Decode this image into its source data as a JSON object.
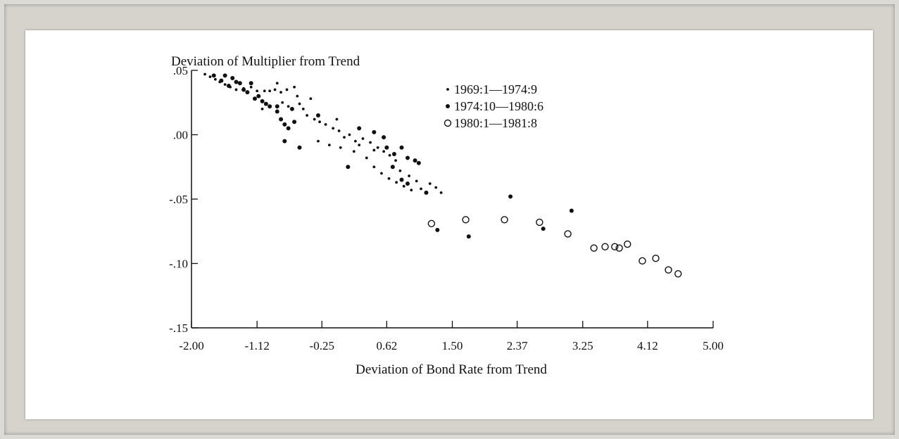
{
  "chart_data": {
    "type": "scatter",
    "ylabel": "Deviation of Multiplier from Trend",
    "xlabel": "Deviation of Bond Rate from Trend",
    "xlim": [
      -2.0,
      5.0
    ],
    "ylim": [
      -0.15,
      0.05
    ],
    "x_ticks": [
      -2.0,
      -1.12,
      -0.25,
      0.62,
      1.5,
      2.37,
      3.25,
      4.12,
      5.0
    ],
    "x_tick_labels": [
      "-2.00",
      "-1.12",
      "-0.25",
      "0.62",
      "1.50",
      "2.37",
      "3.25",
      "4.12",
      "5.00"
    ],
    "y_ticks": [
      0.05,
      0.0,
      -0.05,
      -0.1,
      -0.15
    ],
    "y_tick_labels": [
      ".05",
      ".00",
      "-.05",
      "-.10",
      "-.15"
    ],
    "grid": false,
    "legend_position": "top-right",
    "series": [
      {
        "name": "1969:1—1974:9",
        "marker": "small-dot",
        "points": [
          [
            -1.82,
            0.047
          ],
          [
            -1.75,
            0.045
          ],
          [
            -1.68,
            0.043
          ],
          [
            -1.62,
            0.041
          ],
          [
            -1.55,
            0.039
          ],
          [
            -1.48,
            0.037
          ],
          [
            -1.4,
            0.035
          ],
          [
            -1.3,
            0.036
          ],
          [
            -1.2,
            0.037
          ],
          [
            -1.12,
            0.034
          ],
          [
            -1.02,
            0.034
          ],
          [
            -0.95,
            0.034
          ],
          [
            -0.88,
            0.035
          ],
          [
            -0.8,
            0.033
          ],
          [
            -0.72,
            0.035
          ],
          [
            -0.78,
            0.025
          ],
          [
            -0.7,
            0.022
          ],
          [
            -0.58,
            0.03
          ],
          [
            -0.55,
            0.024
          ],
          [
            -0.5,
            0.02
          ],
          [
            -0.45,
            0.015
          ],
          [
            -0.35,
            0.012
          ],
          [
            -0.28,
            0.01
          ],
          [
            -0.2,
            0.008
          ],
          [
            -0.1,
            0.005
          ],
          [
            -0.02,
            0.003
          ],
          [
            0.05,
            -0.002
          ],
          [
            0.12,
            0.0
          ],
          [
            0.2,
            -0.005
          ],
          [
            0.3,
            -0.003
          ],
          [
            0.4,
            -0.006
          ],
          [
            0.5,
            -0.01
          ],
          [
            0.58,
            -0.013
          ],
          [
            0.66,
            -0.016
          ],
          [
            0.74,
            -0.02
          ],
          [
            -0.3,
            -0.005
          ],
          [
            -0.15,
            -0.008
          ],
          [
            0.0,
            -0.01
          ],
          [
            0.18,
            -0.013
          ],
          [
            0.35,
            -0.018
          ],
          [
            0.45,
            -0.025
          ],
          [
            0.55,
            -0.03
          ],
          [
            0.65,
            -0.034
          ],
          [
            0.75,
            -0.037
          ],
          [
            0.85,
            -0.04
          ],
          [
            0.95,
            -0.043
          ],
          [
            1.08,
            -0.042
          ],
          [
            1.2,
            -0.038
          ],
          [
            1.28,
            -0.041
          ],
          [
            1.35,
            -0.045
          ],
          [
            0.8,
            -0.028
          ],
          [
            0.92,
            -0.032
          ],
          [
            1.02,
            -0.036
          ],
          [
            0.45,
            -0.012
          ],
          [
            0.25,
            -0.008
          ],
          [
            -0.05,
            0.012
          ],
          [
            -0.4,
            0.028
          ],
          [
            -0.85,
            0.04
          ],
          [
            -1.05,
            0.02
          ],
          [
            -0.62,
            0.037
          ]
        ]
      },
      {
        "name": "1974:10—1980:6",
        "marker": "filled-dot",
        "points": [
          [
            -1.7,
            0.046
          ],
          [
            -1.6,
            0.042
          ],
          [
            -1.55,
            0.046
          ],
          [
            -1.5,
            0.038
          ],
          [
            -1.45,
            0.044
          ],
          [
            -1.4,
            0.041
          ],
          [
            -1.35,
            0.04
          ],
          [
            -1.3,
            0.035
          ],
          [
            -1.25,
            0.033
          ],
          [
            -1.2,
            0.04
          ],
          [
            -1.15,
            0.028
          ],
          [
            -1.1,
            0.03
          ],
          [
            -1.05,
            0.026
          ],
          [
            -1.0,
            0.024
          ],
          [
            -0.95,
            0.022
          ],
          [
            -0.85,
            0.018
          ],
          [
            -0.8,
            0.012
          ],
          [
            -0.75,
            0.008
          ],
          [
            -0.7,
            0.005
          ],
          [
            -0.75,
            -0.005
          ],
          [
            -0.62,
            0.01
          ],
          [
            -0.55,
            -0.01
          ],
          [
            -0.85,
            0.022
          ],
          [
            -0.65,
            0.02
          ],
          [
            -0.3,
            0.015
          ],
          [
            0.25,
            0.005
          ],
          [
            0.45,
            0.002
          ],
          [
            0.58,
            -0.002
          ],
          [
            0.62,
            -0.01
          ],
          [
            0.72,
            -0.015
          ],
          [
            0.82,
            -0.01
          ],
          [
            0.9,
            -0.018
          ],
          [
            1.0,
            -0.02
          ],
          [
            1.05,
            -0.022
          ],
          [
            0.7,
            -0.025
          ],
          [
            0.82,
            -0.035
          ],
          [
            0.9,
            -0.038
          ],
          [
            1.15,
            -0.045
          ],
          [
            0.1,
            -0.025
          ],
          [
            1.3,
            -0.074
          ],
          [
            1.72,
            -0.079
          ],
          [
            2.28,
            -0.048
          ],
          [
            2.72,
            -0.073
          ],
          [
            3.1,
            -0.059
          ]
        ]
      },
      {
        "name": "1980:1—1981:8",
        "marker": "open-circle",
        "points": [
          [
            1.22,
            -0.069
          ],
          [
            1.68,
            -0.066
          ],
          [
            2.2,
            -0.066
          ],
          [
            2.67,
            -0.068
          ],
          [
            3.05,
            -0.077
          ],
          [
            3.4,
            -0.088
          ],
          [
            3.55,
            -0.087
          ],
          [
            3.68,
            -0.087
          ],
          [
            3.74,
            -0.088
          ],
          [
            3.85,
            -0.085
          ],
          [
            4.05,
            -0.098
          ],
          [
            4.23,
            -0.096
          ],
          [
            4.4,
            -0.105
          ],
          [
            4.53,
            -0.108
          ]
        ]
      }
    ]
  }
}
